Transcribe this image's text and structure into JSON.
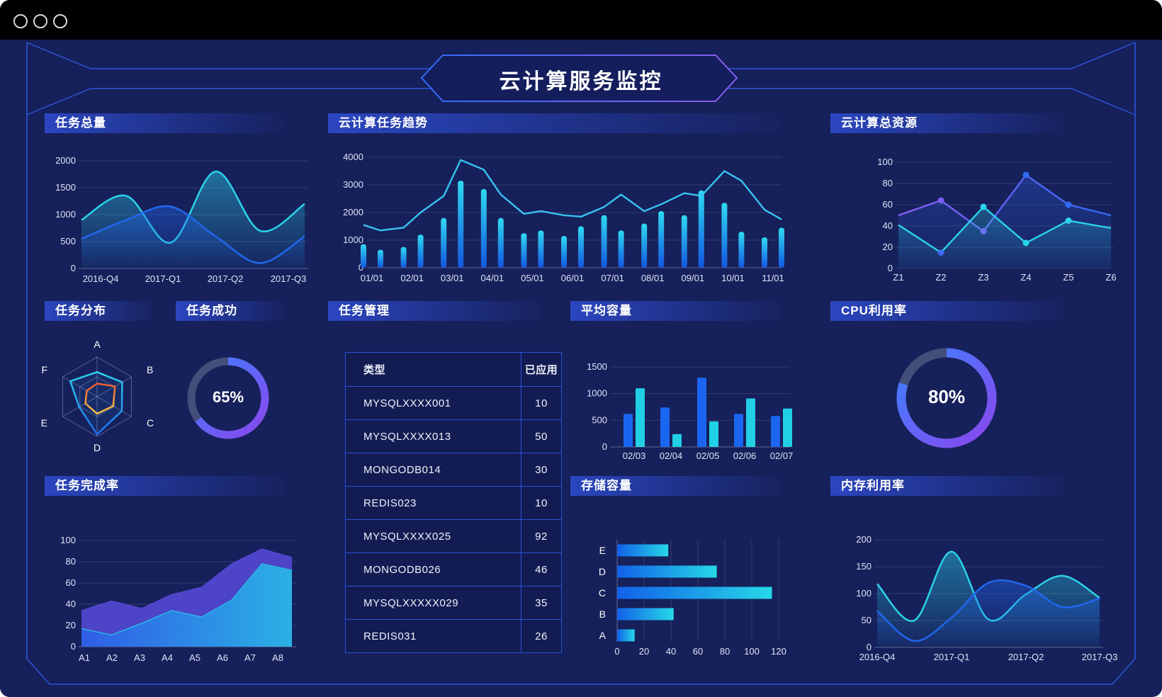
{
  "page_title": "云计算服务监控",
  "panels": {
    "task_total": {
      "title": "任务总量"
    },
    "cloud_trend": {
      "title": "云计算任务趋势"
    },
    "cloud_resource": {
      "title": "云计算总资源"
    },
    "task_distribution": {
      "title": "任务分布"
    },
    "task_success": {
      "title": "任务成功",
      "value": "65%"
    },
    "task_manage": {
      "title": "任务管理"
    },
    "avg_capacity": {
      "title": "平均容量"
    },
    "cpu": {
      "title": "CPU利用率",
      "value": "80%"
    },
    "completion": {
      "title": "任务完成率"
    },
    "storage": {
      "title": "存储容量"
    },
    "memory": {
      "title": "内存利用率"
    }
  },
  "colors": {
    "background": "#16205a",
    "titlebar": "#000000",
    "frame": "#2e56d8",
    "header_gradient_start": "#2b46c0",
    "cyan": "#2bd3ea",
    "blue": "#2266ec",
    "bar_blue": "#1b66f0",
    "bar_cyan": "#22d0e6",
    "purple": "#8a5cf0",
    "orange": "#f25b2a",
    "donut_rest": "#434e79",
    "table_border": "#2b50d9"
  },
  "chart_data": [
    {
      "id": "task_total",
      "type": "area",
      "title": "任务总量",
      "x_labels": [
        "2016-Q4",
        "2017-Q1",
        "2017-Q2",
        "2017-Q3"
      ],
      "y_ticks": [
        0,
        500,
        1000,
        1500,
        2000
      ],
      "ylim": [
        0,
        2000
      ],
      "smooth": true,
      "series": [
        {
          "name": "series-cyan",
          "color": "#2bd3ea",
          "values": [
            900,
            1350,
            480,
            1800,
            700,
            1200
          ]
        },
        {
          "name": "series-blue",
          "color": "#2266ec",
          "values": [
            550,
            900,
            1150,
            600,
            100,
            600
          ]
        }
      ]
    },
    {
      "id": "cloud_trend",
      "type": "bar+line",
      "title": "云计算任务趋势",
      "x_labels": [
        "01/01",
        "02/01",
        "03/01",
        "04/01",
        "05/01",
        "06/01",
        "07/01",
        "08/01",
        "09/01",
        "10/01",
        "11/01"
      ],
      "y_ticks": [
        0,
        1000,
        2000,
        3000,
        4000
      ],
      "ylim": [
        0,
        4000
      ],
      "bar_values": [
        850,
        650,
        750,
        1200,
        1800,
        3150,
        2850,
        1800,
        1250,
        1350,
        1150,
        1500,
        1900,
        1350,
        1600,
        2050,
        1900,
        2800,
        2350,
        1300,
        1100,
        1450
      ],
      "line_values": [
        1550,
        1350,
        1450,
        2000,
        2600,
        3900,
        3550,
        2650,
        1950,
        2050,
        1900,
        1850,
        2200,
        2650,
        2050,
        2300,
        2700,
        2600,
        3500,
        3150,
        2100,
        1750
      ]
    },
    {
      "id": "cloud_resource",
      "type": "line",
      "title": "云计算总资源",
      "x_labels": [
        "Z1",
        "Z2",
        "Z3",
        "Z4",
        "Z5",
        "Z6"
      ],
      "y_ticks": [
        0,
        20,
        40,
        60,
        80,
        100
      ],
      "ylim": [
        0,
        100
      ],
      "series": [
        {
          "name": "series-purple-blue",
          "color_start": "#8a5cf0",
          "color_end": "#2f6af5",
          "values": [
            50,
            64,
            35,
            88,
            60,
            50
          ]
        },
        {
          "name": "series-cyan",
          "color": "#2bd3ea",
          "values": [
            41,
            15,
            58,
            24,
            45,
            38
          ]
        }
      ]
    },
    {
      "id": "task_distribution",
      "type": "radar",
      "title": "任务分布",
      "axes": [
        "A",
        "B",
        "C",
        "D",
        "E",
        "F"
      ],
      "max": 100,
      "series": [
        {
          "name": "series-blue",
          "values": [
            62,
            73,
            72,
            95,
            52,
            78
          ]
        },
        {
          "name": "series-orange",
          "values": [
            33,
            52,
            47,
            43,
            34,
            30
          ]
        }
      ]
    },
    {
      "id": "task_success",
      "type": "donut",
      "title": "任务成功",
      "percent": 65,
      "label": "65%"
    },
    {
      "id": "task_manage",
      "type": "table",
      "title": "任务管理",
      "headers": [
        "类型",
        "已应用"
      ],
      "rows": [
        [
          "MYSQLXXXX001",
          "10"
        ],
        [
          "MYSQLXXXX013",
          "50"
        ],
        [
          "MONGODB014",
          "30"
        ],
        [
          "REDIS023",
          "10"
        ],
        [
          "MYSQLXXXX025",
          "92"
        ],
        [
          "MONGODB026",
          "46"
        ],
        [
          "MYSQLXXXXX029",
          "35"
        ],
        [
          "REDIS031",
          "26"
        ]
      ]
    },
    {
      "id": "avg_capacity",
      "type": "grouped-bar",
      "title": "平均容量",
      "x_labels": [
        "02/03",
        "02/04",
        "02/05",
        "02/06",
        "02/07"
      ],
      "y_ticks": [
        0,
        500,
        1000,
        1500
      ],
      "ylim": [
        0,
        1500
      ],
      "series": [
        {
          "name": "series-blue",
          "color": "#1b66f0",
          "values": [
            620,
            740,
            1300,
            620,
            580
          ]
        },
        {
          "name": "series-cyan",
          "color": "#22d0e6",
          "values": [
            1100,
            240,
            480,
            910,
            720
          ]
        }
      ]
    },
    {
      "id": "storage",
      "type": "hbar",
      "title": "存储容量",
      "categories": [
        "E",
        "D",
        "C",
        "B",
        "A"
      ],
      "values": [
        38,
        74,
        115,
        42,
        13
      ],
      "x_ticks": [
        0,
        20,
        40,
        60,
        80,
        100,
        120
      ],
      "xlim": [
        0,
        120
      ]
    },
    {
      "id": "cpu",
      "type": "donut",
      "title": "CPU利用率",
      "percent": 80,
      "label": "80%"
    },
    {
      "id": "completion",
      "type": "area",
      "title": "任务完成率",
      "x_labels": [
        "A1",
        "A2",
        "A3",
        "A4",
        "A5",
        "A6",
        "A7",
        "A8"
      ],
      "y_ticks": [
        0,
        20,
        40,
        60,
        80,
        100
      ],
      "ylim": [
        0,
        100
      ],
      "smooth": false,
      "series": [
        {
          "name": "series-purple",
          "color": "#5348d0",
          "values": [
            34,
            43,
            36,
            49,
            56,
            78,
            92,
            84
          ]
        },
        {
          "name": "series-blue",
          "color": "#29b6e6",
          "values": [
            17,
            11,
            22,
            34,
            28,
            44,
            78,
            72
          ]
        }
      ]
    },
    {
      "id": "memory",
      "type": "area",
      "title": "内存利用率",
      "x_labels": [
        "2016-Q4",
        "2017-Q1",
        "2017-Q2",
        "2017-Q3"
      ],
      "y_ticks": [
        0,
        50,
        100,
        150,
        200
      ],
      "ylim": [
        0,
        200
      ],
      "smooth": true,
      "series": [
        {
          "name": "series-cyan",
          "color": "#2bd3ea",
          "values": [
            118,
            50,
            178,
            52,
            98,
            133,
            92
          ]
        },
        {
          "name": "series-blue",
          "color": "#2266ec",
          "values": [
            68,
            12,
            55,
            120,
            115,
            75,
            91
          ]
        }
      ]
    }
  ]
}
